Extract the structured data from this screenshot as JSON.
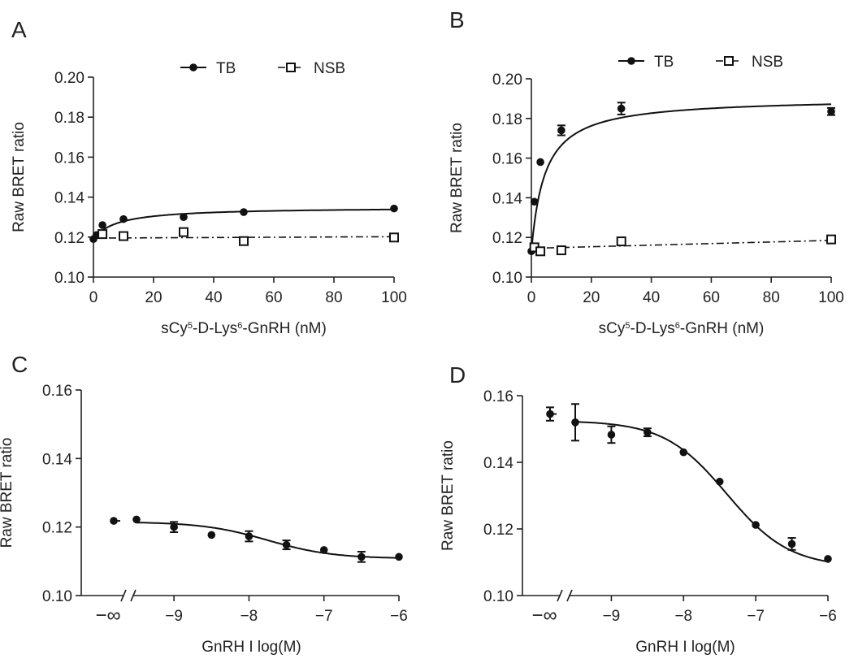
{
  "chart_data": [
    {
      "panel": "A",
      "type": "scatter",
      "xlabel": "sCy5-D-Lys6-GnRH (nM)",
      "xlabel_parts": [
        "sCy",
        "5",
        "-D-Lys",
        "6",
        "-GnRH (nM)"
      ],
      "ylabel": "Raw BRET ratio",
      "xlim": [
        0,
        100
      ],
      "ylim": [
        0.1,
        0.2
      ],
      "xticks": [
        0,
        20,
        40,
        60,
        80,
        100
      ],
      "yticks": [
        0.1,
        0.12,
        0.14,
        0.16,
        0.18,
        0.2
      ],
      "legend": "top",
      "series": [
        {
          "name": "TB",
          "marker": "filled-circle",
          "x": [
            0,
            1,
            3,
            10,
            30,
            50,
            100
          ],
          "y": [
            0.119,
            0.121,
            0.126,
            0.129,
            0.13,
            0.1325,
            0.1343
          ],
          "err": [
            0,
            0,
            0,
            0,
            0,
            0,
            0
          ],
          "fit": {
            "kind": "hyperbola",
            "y0": 0.119,
            "bmax": 0.016,
            "kd": 8
          }
        },
        {
          "name": "NSB",
          "marker": "open-square",
          "x": [
            3,
            10,
            30,
            50,
            100
          ],
          "y": [
            0.1215,
            0.1205,
            0.1225,
            0.118,
            0.1198
          ],
          "err": [
            0,
            0,
            0,
            0,
            0
          ],
          "fit": {
            "kind": "linear",
            "a": 0.1195,
            "b": 7e-06
          }
        }
      ]
    },
    {
      "panel": "B",
      "type": "scatter",
      "xlabel": "sCy5-D-Lys6-GnRH (nM)",
      "xlabel_parts": [
        "sCy",
        "5",
        "-D-Lys",
        "6",
        "-GnRH (nM)"
      ],
      "ylabel": "Raw BRET ratio",
      "xlim": [
        0,
        100
      ],
      "ylim": [
        0.1,
        0.2
      ],
      "xticks": [
        0,
        20,
        40,
        60,
        80,
        100
      ],
      "yticks": [
        0.1,
        0.12,
        0.14,
        0.16,
        0.18,
        0.2
      ],
      "legend": "top",
      "series": [
        {
          "name": "TB",
          "marker": "filled-circle",
          "x": [
            0,
            1,
            3,
            10,
            30,
            100
          ],
          "y": [
            0.113,
            0.138,
            0.158,
            0.174,
            0.185,
            0.1835
          ],
          "err": [
            0,
            0,
            0,
            0.0025,
            0.003,
            0.0018
          ],
          "fit": {
            "kind": "hyperbola",
            "y0": 0.113,
            "bmax": 0.0775,
            "kd": 4.5
          }
        },
        {
          "name": "NSB",
          "marker": "open-square",
          "x": [
            1,
            3,
            10,
            30,
            100
          ],
          "y": [
            0.115,
            0.113,
            0.1135,
            0.118,
            0.119
          ],
          "err": [
            0,
            0,
            0,
            0,
            0
          ],
          "fit": {
            "kind": "linear",
            "a": 0.1145,
            "b": 4e-05
          }
        }
      ]
    },
    {
      "panel": "C",
      "type": "scatter",
      "xlabel": "GnRH I log(M)",
      "ylabel": "Raw BRET ratio",
      "xlim": [
        -9.5,
        -6
      ],
      "ylim": [
        0.1,
        0.16
      ],
      "xticks": [
        -9,
        -8,
        -7,
        -6
      ],
      "xtick_labels": [
        "−9",
        "−8",
        "−7",
        "−6"
      ],
      "yticks": [
        0.1,
        0.12,
        0.14,
        0.16
      ],
      "break_label": "−∞",
      "break_point": {
        "y": 0.1218,
        "err": 0
      },
      "series": [
        {
          "name": "",
          "marker": "filled-circle",
          "x": [
            -9.5,
            -9,
            -8.5,
            -8,
            -7.5,
            -7,
            -6.5,
            -6
          ],
          "y": [
            0.1222,
            0.12,
            0.1177,
            0.1173,
            0.1148,
            0.1133,
            0.1113,
            0.1113
          ],
          "err": [
            0,
            0.0015,
            0,
            0.0015,
            0.0013,
            0,
            0.0015,
            0
          ],
          "fit": {
            "kind": "sigmoid",
            "top": 0.1215,
            "bottom": 0.1108,
            "logec50": -7.75,
            "hill": 1
          }
        }
      ]
    },
    {
      "panel": "D",
      "type": "scatter",
      "xlabel": "GnRH I log(M)",
      "ylabel": "Raw BRET ratio",
      "xlim": [
        -9.5,
        -6
      ],
      "ylim": [
        0.1,
        0.16
      ],
      "xticks": [
        -9,
        -8,
        -7,
        -6
      ],
      "xtick_labels": [
        "−9",
        "−8",
        "−7",
        "−6"
      ],
      "yticks": [
        0.1,
        0.12,
        0.14,
        0.16
      ],
      "break_label": "−∞",
      "break_point": {
        "y": 0.1545,
        "err": 0.002
      },
      "series": [
        {
          "name": "",
          "marker": "filled-circle",
          "x": [
            -9.5,
            -9,
            -8.5,
            -8,
            -7.5,
            -7,
            -6.5,
            -6
          ],
          "y": [
            0.152,
            0.1483,
            0.149,
            0.143,
            0.1342,
            0.1212,
            0.1155,
            0.111
          ],
          "err": [
            0.0055,
            0.0025,
            0.0012,
            0,
            0,
            0,
            0.0018,
            0
          ],
          "fit": {
            "kind": "sigmoid",
            "top": 0.1525,
            "bottom": 0.1085,
            "logec50": -7.4,
            "hill": 1
          }
        }
      ]
    }
  ]
}
